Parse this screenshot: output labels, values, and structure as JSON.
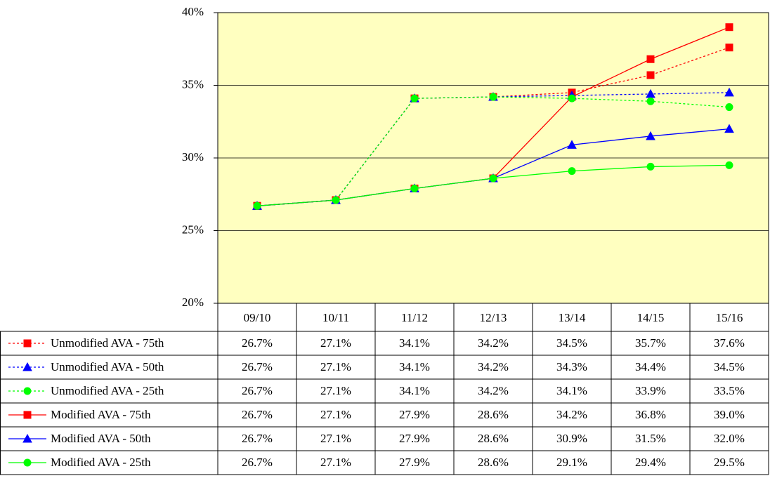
{
  "chart_data": {
    "type": "line",
    "categories": [
      "09/10",
      "10/11",
      "11/12",
      "12/13",
      "13/14",
      "14/15",
      "15/16"
    ],
    "ylim": [
      20,
      40
    ],
    "yticks": [
      {
        "value": 20,
        "label": "20%"
      },
      {
        "value": 25,
        "label": "25%"
      },
      {
        "value": 30,
        "label": "30%"
      },
      {
        "value": 35,
        "label": "35%"
      },
      {
        "value": 40,
        "label": "40%"
      }
    ],
    "grid": true,
    "plot_background": "#ffffc0",
    "series": [
      {
        "name": "Unmodified AVA - 75th",
        "color": "#ff0000",
        "line_style": "dashed",
        "marker": "square",
        "values": [
          26.7,
          27.1,
          34.1,
          34.2,
          34.5,
          35.7,
          37.6
        ],
        "value_labels": [
          "26.7%",
          "27.1%",
          "34.1%",
          "34.2%",
          "34.5%",
          "35.7%",
          "37.6%"
        ]
      },
      {
        "name": "Unmodified AVA - 50th",
        "color": "#0000ff",
        "line_style": "dashed",
        "marker": "triangle",
        "values": [
          26.7,
          27.1,
          34.1,
          34.2,
          34.3,
          34.4,
          34.5
        ],
        "value_labels": [
          "26.7%",
          "27.1%",
          "34.1%",
          "34.2%",
          "34.3%",
          "34.4%",
          "34.5%"
        ]
      },
      {
        "name": "Unmodified AVA - 25th",
        "color": "#00ff00",
        "line_style": "dashed",
        "marker": "circle",
        "values": [
          26.7,
          27.1,
          34.1,
          34.2,
          34.1,
          33.9,
          33.5
        ],
        "value_labels": [
          "26.7%",
          "27.1%",
          "34.1%",
          "34.2%",
          "34.1%",
          "33.9%",
          "33.5%"
        ]
      },
      {
        "name": "Modified AVA - 75th",
        "color": "#ff0000",
        "line_style": "solid",
        "marker": "square",
        "values": [
          26.7,
          27.1,
          27.9,
          28.6,
          34.2,
          36.8,
          39.0
        ],
        "value_labels": [
          "26.7%",
          "27.1%",
          "27.9%",
          "28.6%",
          "34.2%",
          "36.8%",
          "39.0%"
        ]
      },
      {
        "name": "Modified AVA - 50th",
        "color": "#0000ff",
        "line_style": "solid",
        "marker": "triangle",
        "values": [
          26.7,
          27.1,
          27.9,
          28.6,
          30.9,
          31.5,
          32.0
        ],
        "value_labels": [
          "26.7%",
          "27.1%",
          "27.9%",
          "28.6%",
          "30.9%",
          "31.5%",
          "32.0%"
        ]
      },
      {
        "name": "Modified AVA - 25th",
        "color": "#00ff00",
        "line_style": "solid",
        "marker": "circle",
        "values": [
          26.7,
          27.1,
          27.9,
          28.6,
          29.1,
          29.4,
          29.5
        ],
        "value_labels": [
          "26.7%",
          "27.1%",
          "27.9%",
          "28.6%",
          "29.1%",
          "29.4%",
          "29.5%"
        ]
      }
    ]
  }
}
